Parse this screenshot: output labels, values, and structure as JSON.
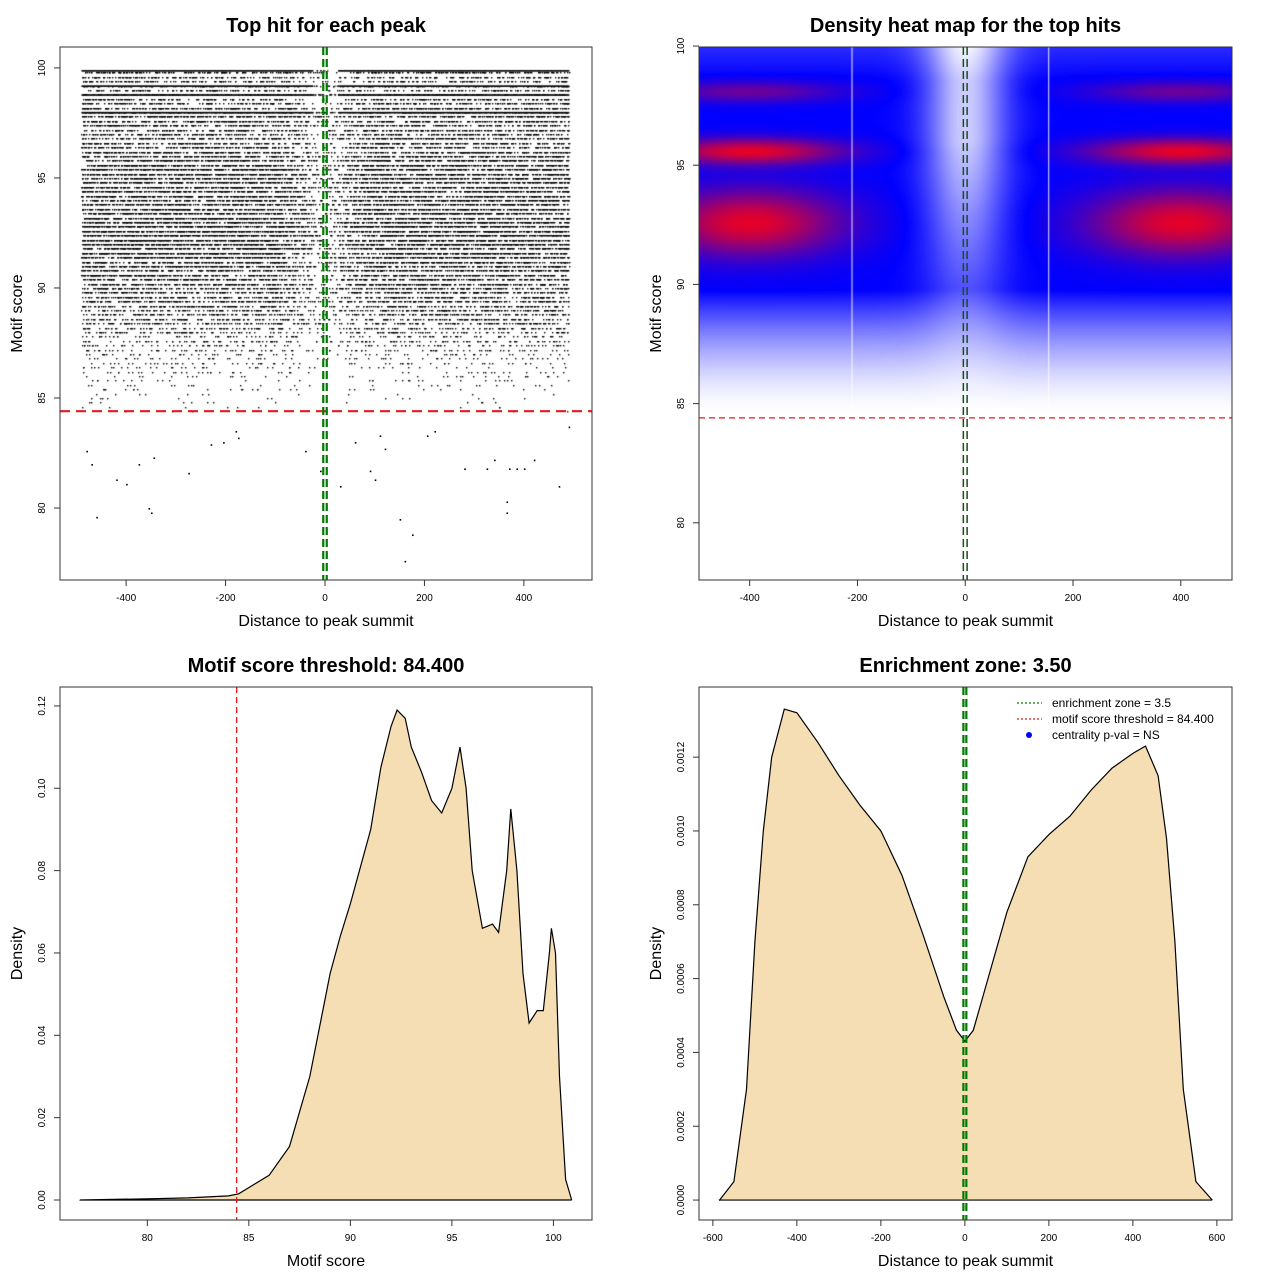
{
  "chart_data": [
    {
      "type": "scatter",
      "title": "Top hit for each peak",
      "xlabel": "Distance to peak summit",
      "ylabel": "Motif score",
      "xlim": [
        -533,
        537
      ],
      "ylim": [
        76.73,
        100.95
      ],
      "xticks": [
        "-400",
        "-200",
        "0",
        "200",
        "400"
      ],
      "yticks": [
        "80",
        "85",
        "90",
        "95",
        "100"
      ],
      "point_color": "#000000",
      "dense_region": {
        "x_range": [
          -490,
          490
        ],
        "y_range": [
          84.4,
          99.9
        ],
        "note_rows": [
          99.9,
          99.2,
          98.8,
          98.0
        ]
      },
      "sparse_points": [
        [
          -480,
          82.6
        ],
        [
          -470,
          82.0
        ],
        [
          -460,
          79.6
        ],
        [
          -420,
          81.3
        ],
        [
          -400,
          81.1
        ],
        [
          -375,
          82.0
        ],
        [
          -355,
          80.0
        ],
        [
          -350,
          79.8
        ],
        [
          -345,
          82.3
        ],
        [
          -275,
          81.6
        ],
        [
          -230,
          82.9
        ],
        [
          -205,
          83.0
        ],
        [
          -180,
          83.5
        ],
        [
          -175,
          83.2
        ],
        [
          -40,
          82.6
        ],
        [
          -10,
          81.7
        ],
        [
          30,
          81.0
        ],
        [
          60,
          83.0
        ],
        [
          90,
          81.7
        ],
        [
          100,
          81.3
        ],
        [
          110,
          83.3
        ],
        [
          120,
          82.7
        ],
        [
          150,
          79.5
        ],
        [
          160,
          77.6
        ],
        [
          175,
          78.8
        ],
        [
          205,
          83.3
        ],
        [
          220,
          83.5
        ],
        [
          280,
          81.8
        ],
        [
          325,
          81.8
        ],
        [
          340,
          82.2
        ],
        [
          365,
          80.3
        ],
        [
          365,
          79.8
        ],
        [
          370,
          81.8
        ],
        [
          385,
          81.8
        ],
        [
          400,
          81.8
        ],
        [
          420,
          82.2
        ],
        [
          470,
          81.0
        ],
        [
          490,
          83.7
        ]
      ],
      "hlines": [
        {
          "y": 84.4,
          "color": "#e41a1c",
          "style": "dashed"
        }
      ],
      "vlines": [
        {
          "x": -3.5,
          "color": "#007a00",
          "style": "dashed"
        },
        {
          "x": 3.5,
          "color": "#007a00",
          "style": "dashed"
        }
      ]
    },
    {
      "type": "heatmap",
      "title": "Density heat map for the top hits",
      "xlabel": "Distance to peak summit",
      "ylabel": "Motif score",
      "xlim": [
        -494,
        495
      ],
      "ylim": [
        77.6,
        99.96
      ],
      "xticks": [
        "-400",
        "-200",
        "0",
        "200",
        "400"
      ],
      "yticks": [
        "80",
        "85",
        "90",
        "95",
        "100"
      ],
      "colormap": [
        "#ffffff",
        "#0000ff",
        "#ff0000"
      ],
      "hlines": [
        {
          "y": 84.4,
          "color": "#e41a1c",
          "style": "dashed"
        }
      ],
      "vlines": [
        {
          "x": -3.5,
          "color": "#1a4d1a",
          "style": "dashed"
        },
        {
          "x": 3.5,
          "color": "#1a4d1a",
          "style": "dashed"
        }
      ]
    },
    {
      "type": "area",
      "title": "Motif score threshold: 84.400",
      "xlabel": "Motif score",
      "ylabel": "Density",
      "xlim": [
        75.7,
        101.9
      ],
      "ylim": [
        -0.00486,
        0.1246
      ],
      "xticks": [
        "80",
        "85",
        "90",
        "95",
        "100"
      ],
      "yticks": [
        "0.00",
        "0.02",
        "0.04",
        "0.06",
        "0.08",
        "0.10",
        "0.12"
      ],
      "fill": "#f5deb3",
      "x": [
        76.7,
        80,
        82,
        84,
        84.5,
        85,
        86,
        87,
        88,
        89,
        89.5,
        90,
        91,
        91.5,
        92,
        92.3,
        92.7,
        93,
        93.5,
        94,
        94.5,
        95,
        95.4,
        95.7,
        96,
        96.5,
        97,
        97.3,
        97.7,
        97.9,
        98.2,
        98.5,
        98.8,
        99.2,
        99.5,
        99.8,
        99.9,
        100.1,
        100.3,
        100.6,
        100.9
      ],
      "y": [
        0,
        0.0003,
        0.0005,
        0.001,
        0.0015,
        0.003,
        0.006,
        0.013,
        0.03,
        0.055,
        0.064,
        0.072,
        0.09,
        0.105,
        0.115,
        0.119,
        0.117,
        0.11,
        0.104,
        0.097,
        0.094,
        0.1,
        0.11,
        0.1,
        0.08,
        0.066,
        0.067,
        0.065,
        0.08,
        0.095,
        0.08,
        0.055,
        0.043,
        0.046,
        0.046,
        0.06,
        0.066,
        0.06,
        0.03,
        0.005,
        0
      ],
      "vlines": [
        {
          "x": 84.4,
          "color": "#e41a1c",
          "style": "dashed"
        }
      ]
    },
    {
      "type": "area",
      "title": "Enrichment zone: 3.50",
      "xlabel": "Distance to peak summit",
      "ylabel": "Density",
      "xlim": [
        -633,
        636
      ],
      "ylim": [
        -5.4e-05,
        0.00139
      ],
      "xticks": [
        "-600",
        "-400",
        "-200",
        "0",
        "200",
        "400",
        "600"
      ],
      "yticks": [
        "0.0000",
        "0.0002",
        "0.0004",
        "0.0006",
        "0.0008",
        "0.0010",
        "0.0012"
      ],
      "fill": "#f5deb3",
      "x": [
        -584,
        -550,
        -520,
        -500,
        -480,
        -460,
        -430,
        -400,
        -350,
        -300,
        -250,
        -200,
        -150,
        -100,
        -50,
        -20,
        0,
        20,
        50,
        100,
        150,
        200,
        250,
        300,
        350,
        400,
        430,
        460,
        480,
        500,
        520,
        550,
        589
      ],
      "y": [
        0,
        5e-05,
        0.0003,
        0.0007,
        0.001,
        0.0012,
        0.00133,
        0.00132,
        0.00124,
        0.00115,
        0.00107,
        0.001,
        0.00088,
        0.00072,
        0.00055,
        0.00046,
        0.00043,
        0.00046,
        0.00058,
        0.00078,
        0.00093,
        0.00099,
        0.00104,
        0.00111,
        0.00117,
        0.00121,
        0.00123,
        0.00115,
        0.00098,
        0.0007,
        0.0003,
        5e-05,
        0
      ],
      "vlines": [
        {
          "x": -3.5,
          "color": "#007a00",
          "style": "dashed"
        },
        {
          "x": 3.5,
          "color": "#007a00",
          "style": "dashed"
        }
      ],
      "legend": {
        "position": "top-right",
        "entries": [
          {
            "label": "enrichment zone = 3.5",
            "color": "#007a00",
            "symbol": "dotted-line"
          },
          {
            "label": "motif score threshold = 84.400",
            "color": "#e41a1c",
            "symbol": "dotted-line"
          },
          {
            "label": "centrality p-val = NS",
            "color": "#0000ff",
            "symbol": "dot"
          }
        ]
      }
    }
  ]
}
